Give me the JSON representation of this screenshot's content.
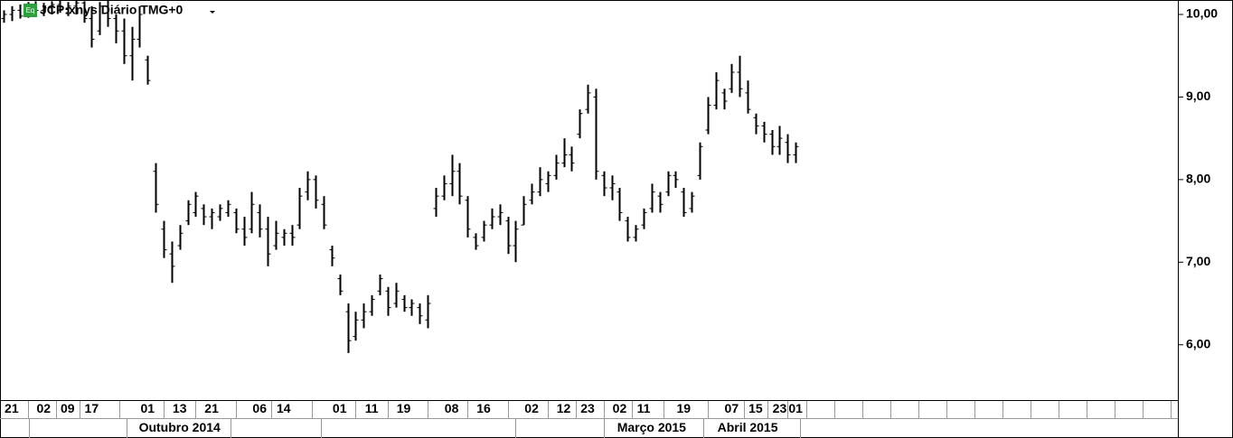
{
  "chart_data": {
    "type": "ohlc",
    "title": "JCP:xnys Diário TMG+0",
    "icon": "Eq",
    "color": "#000000",
    "categories": [
      null,
      "21",
      null,
      null,
      null,
      "02",
      null,
      null,
      "09",
      null,
      null,
      "17",
      null,
      null,
      null,
      null,
      null,
      null,
      "01",
      null,
      null,
      null,
      "13",
      null,
      null,
      null,
      "21",
      null,
      null,
      null,
      null,
      null,
      "06",
      null,
      null,
      "14",
      null,
      null,
      null,
      null,
      null,
      null,
      "01",
      null,
      null,
      null,
      "11",
      null,
      null,
      null,
      "19",
      null,
      null,
      null,
      null,
      null,
      "08",
      null,
      null,
      null,
      "16",
      null,
      null,
      null,
      null,
      null,
      "02",
      null,
      null,
      null,
      "12",
      null,
      null,
      "23",
      null,
      null,
      null,
      "02",
      null,
      null,
      "11",
      null,
      null,
      null,
      null,
      "19",
      null,
      null,
      null,
      null,
      null,
      "07",
      null,
      null,
      "15",
      null,
      null,
      "23",
      null,
      "01"
    ],
    "months": [
      null,
      null,
      null,
      null,
      null,
      null,
      null,
      null,
      null,
      null,
      null,
      null,
      null,
      null,
      null,
      null,
      null,
      null,
      null,
      null,
      null,
      null,
      "Outubro 2014",
      null,
      null,
      null,
      null,
      null,
      null,
      null,
      null,
      null,
      null,
      null,
      null,
      null,
      null,
      null,
      null,
      null,
      null,
      null,
      null,
      null,
      null,
      null,
      null,
      null,
      null,
      null,
      null,
      null,
      null,
      null,
      null,
      null,
      null,
      null,
      null,
      null,
      null,
      null,
      null,
      null,
      null,
      null,
      null,
      null,
      null,
      null,
      null,
      null,
      null,
      null,
      null,
      null,
      null,
      null,
      null,
      null,
      null,
      "Março 2015",
      null,
      null,
      null,
      null,
      null,
      null,
      null,
      null,
      null,
      null,
      null,
      "Abril 2015",
      null,
      null,
      null,
      null,
      null,
      null
    ],
    "high": [
      10.05,
      10.1,
      10.12,
      10.15,
      10.16,
      10.14,
      10.16,
      10.17,
      10.15,
      10.17,
      10.16,
      10.1,
      10.15,
      10.17,
      10.0,
      9.95,
      9.85,
      10.1,
      9.5,
      8.2,
      7.5,
      7.25,
      7.45,
      7.75,
      7.85,
      7.7,
      7.65,
      7.7,
      7.75,
      7.65,
      7.55,
      7.85,
      7.7,
      7.55,
      7.5,
      7.4,
      7.45,
      7.9,
      8.1,
      8.05,
      7.8,
      7.2,
      6.85,
      6.5,
      6.4,
      6.5,
      6.6,
      6.85,
      6.7,
      6.75,
      6.6,
      6.55,
      6.5,
      6.6,
      7.9,
      8.05,
      8.3,
      8.2,
      7.8,
      7.35,
      7.5,
      7.65,
      7.7,
      7.55,
      7.5,
      7.8,
      7.95,
      8.15,
      8.1,
      8.3,
      8.5,
      8.4,
      8.85,
      9.15,
      9.1,
      8.1,
      8.05,
      7.9,
      7.55,
      7.45,
      7.65,
      7.95,
      7.85,
      8.1,
      8.1,
      7.9,
      7.85,
      8.45,
      9.0,
      9.3,
      9.1,
      9.4,
      9.5,
      9.2,
      8.8,
      8.7,
      8.6,
      8.65,
      8.55,
      8.45
    ],
    "low": [
      9.9,
      9.92,
      9.95,
      9.96,
      10.0,
      9.98,
      10.0,
      10.02,
      9.98,
      10.0,
      9.9,
      9.6,
      9.75,
      9.85,
      9.65,
      9.4,
      9.2,
      9.6,
      9.15,
      7.6,
      7.05,
      6.75,
      7.15,
      7.45,
      7.55,
      7.45,
      7.4,
      7.5,
      7.55,
      7.35,
      7.2,
      7.35,
      7.3,
      6.95,
      7.15,
      7.2,
      7.2,
      7.4,
      7.75,
      7.65,
      7.4,
      6.95,
      6.6,
      5.9,
      6.05,
      6.2,
      6.35,
      6.6,
      6.35,
      6.45,
      6.4,
      6.35,
      6.25,
      6.2,
      7.55,
      7.75,
      7.8,
      7.7,
      7.3,
      7.15,
      7.25,
      7.4,
      7.45,
      7.1,
      7.0,
      7.45,
      7.7,
      7.8,
      7.85,
      8.0,
      8.15,
      8.1,
      8.5,
      8.8,
      8.0,
      7.8,
      7.75,
      7.5,
      7.25,
      7.25,
      7.4,
      7.6,
      7.6,
      7.8,
      7.9,
      7.55,
      7.6,
      8.0,
      8.55,
      8.85,
      8.85,
      9.05,
      9.0,
      8.8,
      8.55,
      8.45,
      8.3,
      8.3,
      8.2,
      8.2
    ],
    "open": [
      9.95,
      10.0,
      10.05,
      9.98,
      10.1,
      10.05,
      10.08,
      10.12,
      10.06,
      10.1,
      10.14,
      9.95,
      9.8,
      10.1,
      9.95,
      9.8,
      9.5,
      9.7,
      9.45,
      8.1,
      7.4,
      7.1,
      7.2,
      7.5,
      7.6,
      7.65,
      7.55,
      7.55,
      7.6,
      7.6,
      7.4,
      7.4,
      7.6,
      7.4,
      7.2,
      7.3,
      7.35,
      7.45,
      7.85,
      8.0,
      7.7,
      7.15,
      6.8,
      6.4,
      6.1,
      6.3,
      6.4,
      6.65,
      6.65,
      6.5,
      6.55,
      6.45,
      6.45,
      6.3,
      7.65,
      7.8,
      7.95,
      8.1,
      7.75,
      7.3,
      7.3,
      7.45,
      7.55,
      7.5,
      7.2,
      7.45,
      7.75,
      7.85,
      7.95,
      8.05,
      8.2,
      8.3,
      8.55,
      8.85,
      9.0,
      8.05,
      7.9,
      7.85,
      7.5,
      7.3,
      7.45,
      7.65,
      7.8,
      7.85,
      8.05,
      7.85,
      7.65,
      8.05,
      8.6,
      8.9,
      9.05,
      9.1,
      9.3,
      9.05,
      8.75,
      8.65,
      8.55,
      8.4,
      8.45,
      8.3
    ],
    "close": [
      10.0,
      10.05,
      9.98,
      10.1,
      10.05,
      10.08,
      10.12,
      10.06,
      10.1,
      10.14,
      9.95,
      9.7,
      10.1,
      9.95,
      9.8,
      9.5,
      9.7,
      10.0,
      9.2,
      7.7,
      7.15,
      6.95,
      7.35,
      7.7,
      7.8,
      7.55,
      7.6,
      7.65,
      7.7,
      7.4,
      7.3,
      7.7,
      7.4,
      7.1,
      7.35,
      7.35,
      7.3,
      7.8,
      8.0,
      7.75,
      7.45,
      7.05,
      6.65,
      6.05,
      6.3,
      6.4,
      6.55,
      6.8,
      6.45,
      6.65,
      6.45,
      6.5,
      6.35,
      6.5,
      7.8,
      7.95,
      8.1,
      7.8,
      7.4,
      7.2,
      7.45,
      7.55,
      7.6,
      7.2,
      7.4,
      7.7,
      7.85,
      8.0,
      8.05,
      8.2,
      8.3,
      8.2,
      8.8,
      9.05,
      8.1,
      7.9,
      7.95,
      7.6,
      7.3,
      7.4,
      7.6,
      7.85,
      7.7,
      8.05,
      8.0,
      7.6,
      7.8,
      8.4,
      8.9,
      9.2,
      8.95,
      9.3,
      9.1,
      8.85,
      8.65,
      8.55,
      8.4,
      8.5,
      8.3,
      8.4
    ],
    "ylim": [
      5.33,
      10.175
    ],
    "yticks": [
      {
        "value": 6,
        "label": "6,00"
      },
      {
        "value": 7,
        "label": "7,00"
      },
      {
        "value": 8,
        "label": "8,00"
      },
      {
        "value": 9,
        "label": "9,00"
      },
      {
        "value": 10,
        "label": "10,00"
      }
    ]
  }
}
